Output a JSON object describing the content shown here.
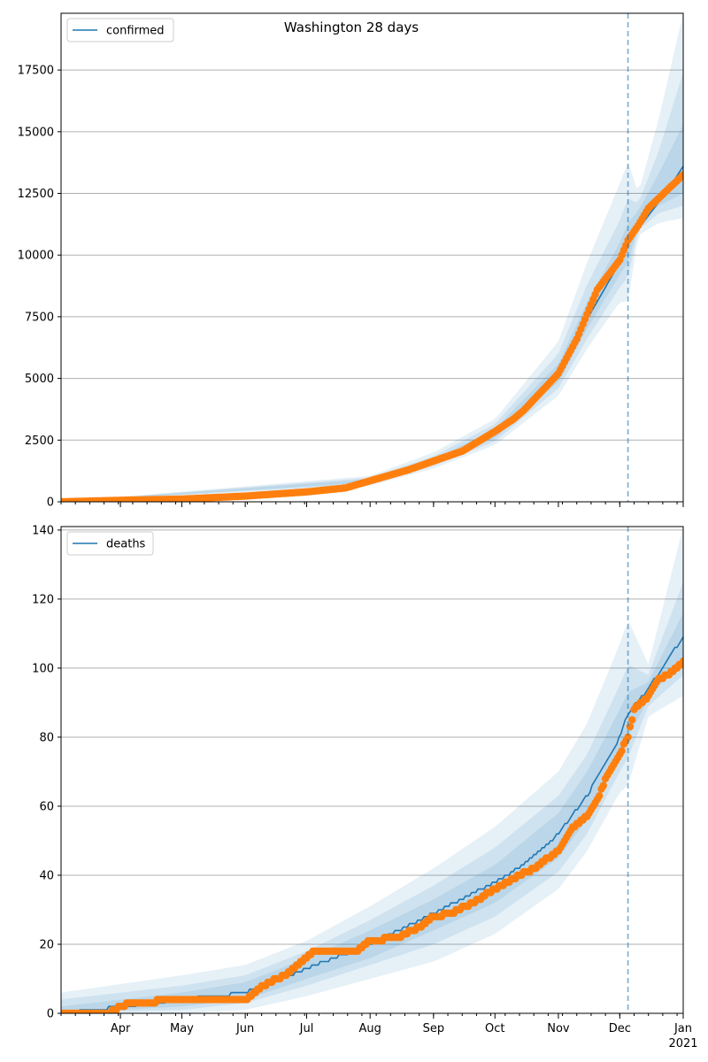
{
  "figure": {
    "title": "Washington 28 days"
  },
  "colors": {
    "model": "#1f77b4",
    "observed": "#ff7f0e",
    "band": "#1f77b4",
    "grid": "#b0b0b0"
  },
  "x_axis": {
    "month_labels": [
      "Apr",
      "May",
      "Jun",
      "Jul",
      "Aug",
      "Sep",
      "Oct",
      "Nov",
      "Dec",
      "Jan"
    ],
    "year_label": "2021"
  },
  "chart_data": [
    {
      "type": "line",
      "series_label": "confirmed",
      "x_start": "2020-03-03",
      "x_end": "2021-01-01",
      "forecast_start": "2020-12-05",
      "ylim": [
        0,
        19800
      ],
      "yticks": [
        0,
        2500,
        5000,
        7500,
        10000,
        12500,
        15000,
        17500
      ],
      "grid": true,
      "legend": "top-left",
      "model_line_points": [
        [
          "2020-03-03",
          0
        ],
        [
          "2020-04-01",
          60
        ],
        [
          "2020-05-01",
          120
        ],
        [
          "2020-06-01",
          250
        ],
        [
          "2020-07-01",
          420
        ],
        [
          "2020-07-20",
          600
        ],
        [
          "2020-08-01",
          850
        ],
        [
          "2020-08-20",
          1250
        ],
        [
          "2020-09-01",
          1600
        ],
        [
          "2020-09-15",
          2000
        ],
        [
          "2020-10-01",
          2750
        ],
        [
          "2020-10-15",
          3700
        ],
        [
          "2020-11-01",
          5200
        ],
        [
          "2020-11-15",
          7400
        ],
        [
          "2020-12-01",
          9700
        ],
        [
          "2020-12-05",
          10500
        ],
        [
          "2020-12-15",
          11600
        ],
        [
          "2020-12-25",
          12700
        ],
        [
          "2021-01-01",
          13600
        ]
      ],
      "observed_points": [
        [
          "2020-03-03",
          0
        ],
        [
          "2020-04-01",
          60
        ],
        [
          "2020-05-01",
          110
        ],
        [
          "2020-06-01",
          230
        ],
        [
          "2020-07-01",
          400
        ],
        [
          "2020-07-20",
          560
        ],
        [
          "2020-08-01",
          850
        ],
        [
          "2020-08-20",
          1300
        ],
        [
          "2020-09-01",
          1650
        ],
        [
          "2020-09-15",
          2050
        ],
        [
          "2020-10-01",
          2850
        ],
        [
          "2020-10-10",
          3350
        ],
        [
          "2020-10-15",
          3700
        ],
        [
          "2020-11-01",
          5200
        ],
        [
          "2020-11-10",
          6600
        ],
        [
          "2020-11-15",
          7600
        ],
        [
          "2020-11-20",
          8600
        ],
        [
          "2020-12-01",
          9800
        ],
        [
          "2020-12-05",
          10600
        ],
        [
          "2020-12-10",
          11200
        ],
        [
          "2020-12-15",
          11900
        ],
        [
          "2020-12-20",
          12300
        ],
        [
          "2020-12-25",
          12700
        ],
        [
          "2021-01-01",
          13250
        ]
      ],
      "bands": [
        {
          "lo": [
            [
              "2020-03-03",
              0
            ],
            [
              "2020-08-01",
              650
            ],
            [
              "2020-09-01",
              1350
            ],
            [
              "2020-10-01",
              2300
            ],
            [
              "2020-11-01",
              4300
            ],
            [
              "2020-11-15",
              6200
            ],
            [
              "2020-12-01",
              8100
            ],
            [
              "2020-12-05",
              8100
            ],
            [
              "2020-12-10",
              10800
            ],
            [
              "2020-12-20",
              11300
            ],
            [
              "2021-01-01",
              11500
            ]
          ],
          "hi": [
            [
              "2020-03-03",
              0
            ],
            [
              "2020-08-01",
              1050
            ],
            [
              "2020-09-01",
              2000
            ],
            [
              "2020-10-01",
              3350
            ],
            [
              "2020-11-01",
              6500
            ],
            [
              "2020-11-15",
              9700
            ],
            [
              "2020-12-01",
              12900
            ],
            [
              "2020-12-05",
              13800
            ],
            [
              "2020-12-10",
              12500
            ],
            [
              "2020-12-20",
              15500
            ],
            [
              "2021-01-01",
              19800
            ]
          ]
        },
        {
          "lo": [
            [
              "2020-03-03",
              0
            ],
            [
              "2020-08-01",
              720
            ],
            [
              "2020-09-01",
              1450
            ],
            [
              "2020-10-01",
              2450
            ],
            [
              "2020-11-01",
              4600
            ],
            [
              "2020-11-15",
              6600
            ],
            [
              "2020-12-01",
              8700
            ],
            [
              "2020-12-05",
              9100
            ],
            [
              "2020-12-10",
              11000
            ],
            [
              "2020-12-20",
              11700
            ],
            [
              "2021-01-01",
              12000
            ]
          ],
          "hi": [
            [
              "2020-03-03",
              0
            ],
            [
              "2020-08-01",
              980
            ],
            [
              "2020-09-01",
              1850
            ],
            [
              "2020-10-01",
              3150
            ],
            [
              "2020-11-01",
              6000
            ],
            [
              "2020-11-15",
              8800
            ],
            [
              "2020-12-01",
              11400
            ],
            [
              "2020-12-05",
              12300
            ],
            [
              "2020-12-10",
              12100
            ],
            [
              "2020-12-20",
              14200
            ],
            [
              "2021-01-01",
              17400
            ]
          ]
        },
        {
          "lo": [
            [
              "2020-03-03",
              0
            ],
            [
              "2020-08-01",
              780
            ],
            [
              "2020-09-01",
              1520
            ],
            [
              "2020-10-01",
              2580
            ],
            [
              "2020-11-01",
              4850
            ],
            [
              "2020-11-15",
              7000
            ],
            [
              "2020-12-01",
              9200
            ],
            [
              "2020-12-05",
              9700
            ],
            [
              "2020-12-10",
              11200
            ],
            [
              "2020-12-20",
              12000
            ],
            [
              "2021-01-01",
              12500
            ]
          ],
          "hi": [
            [
              "2020-03-03",
              0
            ],
            [
              "2020-08-01",
              920
            ],
            [
              "2020-09-01",
              1720
            ],
            [
              "2020-10-01",
              2950
            ],
            [
              "2020-11-01",
              5600
            ],
            [
              "2020-11-15",
              8100
            ],
            [
              "2020-12-01",
              10500
            ],
            [
              "2020-12-05",
              11300
            ],
            [
              "2020-12-10",
              11800
            ],
            [
              "2020-12-20",
              13300
            ],
            [
              "2021-01-01",
              15300
            ]
          ]
        }
      ]
    },
    {
      "type": "line",
      "series_label": "deaths",
      "x_start": "2020-03-03",
      "x_end": "2021-01-01",
      "forecast_start": "2020-12-05",
      "ylim": [
        0,
        141
      ],
      "yticks": [
        0,
        20,
        40,
        60,
        80,
        100,
        120,
        140
      ],
      "grid": true,
      "legend": "top-left",
      "model_line_points": [
        [
          "2020-03-03",
          0
        ],
        [
          "2020-03-20",
          1
        ],
        [
          "2020-04-01",
          2
        ],
        [
          "2020-05-01",
          4
        ],
        [
          "2020-06-01",
          6
        ],
        [
          "2020-07-01",
          13
        ],
        [
          "2020-08-01",
          20
        ],
        [
          "2020-09-01",
          29
        ],
        [
          "2020-10-01",
          38
        ],
        [
          "2020-10-15",
          43
        ],
        [
          "2020-11-01",
          52
        ],
        [
          "2020-11-15",
          63
        ],
        [
          "2020-12-01",
          80
        ],
        [
          "2020-12-05",
          87
        ],
        [
          "2020-12-15",
          94
        ],
        [
          "2020-12-25",
          103
        ],
        [
          "2021-01-01",
          109
        ]
      ],
      "observed_points": [
        [
          "2020-03-03",
          0
        ],
        [
          "2020-03-26",
          0
        ],
        [
          "2020-04-01",
          2
        ],
        [
          "2020-04-06",
          3
        ],
        [
          "2020-05-01",
          4
        ],
        [
          "2020-06-01",
          4
        ],
        [
          "2020-06-10",
          8
        ],
        [
          "2020-06-20",
          11
        ],
        [
          "2020-07-01",
          16
        ],
        [
          "2020-07-05",
          18
        ],
        [
          "2020-07-25",
          18
        ],
        [
          "2020-08-01",
          21
        ],
        [
          "2020-08-15",
          22
        ],
        [
          "2020-08-25",
          25
        ],
        [
          "2020-09-01",
          28
        ],
        [
          "2020-09-10",
          29
        ],
        [
          "2020-09-20",
          32
        ],
        [
          "2020-10-01",
          36
        ],
        [
          "2020-10-10",
          39
        ],
        [
          "2020-10-20",
          42
        ],
        [
          "2020-11-01",
          47
        ],
        [
          "2020-11-08",
          54
        ],
        [
          "2020-11-15",
          57
        ],
        [
          "2020-11-20",
          62
        ],
        [
          "2020-11-25",
          69
        ],
        [
          "2020-12-01",
          75
        ],
        [
          "2020-12-05",
          80
        ],
        [
          "2020-12-08",
          88
        ],
        [
          "2020-12-15",
          92
        ],
        [
          "2020-12-20",
          97
        ],
        [
          "2020-12-25",
          98
        ],
        [
          "2021-01-01",
          102
        ]
      ],
      "bands": [
        {
          "lo": [
            [
              "2020-03-03",
              0
            ],
            [
              "2020-05-01",
              0
            ],
            [
              "2020-06-01",
              1
            ],
            [
              "2020-07-01",
              5
            ],
            [
              "2020-08-01",
              10
            ],
            [
              "2020-09-01",
              15
            ],
            [
              "2020-10-01",
              23
            ],
            [
              "2020-11-01",
              36
            ],
            [
              "2020-11-15",
              47
            ],
            [
              "2020-12-01",
              64
            ],
            [
              "2020-12-05",
              66
            ],
            [
              "2020-12-15",
              86
            ],
            [
              "2021-01-01",
              92
            ]
          ],
          "hi": [
            [
              "2020-03-03",
              6
            ],
            [
              "2020-05-01",
              11
            ],
            [
              "2020-06-01",
              14
            ],
            [
              "2020-07-01",
              21
            ],
            [
              "2020-08-01",
              31
            ],
            [
              "2020-09-01",
              42
            ],
            [
              "2020-10-01",
              54
            ],
            [
              "2020-11-01",
              70
            ],
            [
              "2020-11-15",
              84
            ],
            [
              "2020-12-01",
              107
            ],
            [
              "2020-12-05",
              114
            ],
            [
              "2020-12-15",
              101
            ],
            [
              "2021-01-01",
              141
            ]
          ]
        },
        {
          "lo": [
            [
              "2020-03-03",
              0
            ],
            [
              "2020-05-01",
              1
            ],
            [
              "2020-06-01",
              3
            ],
            [
              "2020-07-01",
              8
            ],
            [
              "2020-08-01",
              14
            ],
            [
              "2020-09-01",
              20
            ],
            [
              "2020-10-01",
              28
            ],
            [
              "2020-11-01",
              41
            ],
            [
              "2020-11-15",
              52
            ],
            [
              "2020-12-01",
              70
            ],
            [
              "2020-12-05",
              74
            ],
            [
              "2020-12-15",
              89
            ],
            [
              "2021-01-01",
              98
            ]
          ],
          "hi": [
            [
              "2020-03-03",
              4
            ],
            [
              "2020-05-01",
              8
            ],
            [
              "2020-06-01",
              11
            ],
            [
              "2020-07-01",
              18
            ],
            [
              "2020-08-01",
              27
            ],
            [
              "2020-09-01",
              37
            ],
            [
              "2020-10-01",
              48
            ],
            [
              "2020-11-01",
              63
            ],
            [
              "2020-11-15",
              75
            ],
            [
              "2020-12-01",
              95
            ],
            [
              "2020-12-05",
              101
            ],
            [
              "2020-12-15",
              98
            ],
            [
              "2021-01-01",
              125
            ]
          ]
        },
        {
          "lo": [
            [
              "2020-03-03",
              0
            ],
            [
              "2020-05-01",
              2
            ],
            [
              "2020-06-01",
              4
            ],
            [
              "2020-07-01",
              10
            ],
            [
              "2020-08-01",
              16
            ],
            [
              "2020-09-01",
              24
            ],
            [
              "2020-10-01",
              32
            ],
            [
              "2020-11-01",
              45
            ],
            [
              "2020-11-15",
              56
            ],
            [
              "2020-12-01",
              74
            ],
            [
              "2020-12-05",
              80
            ],
            [
              "2020-12-15",
              91
            ],
            [
              "2021-01-01",
              103
            ]
          ],
          "hi": [
            [
              "2020-03-03",
              2
            ],
            [
              "2020-05-01",
              6
            ],
            [
              "2020-06-01",
              9
            ],
            [
              "2020-07-01",
              16
            ],
            [
              "2020-08-01",
              24
            ],
            [
              "2020-09-01",
              33
            ],
            [
              "2020-10-01",
              43
            ],
            [
              "2020-11-01",
              58
            ],
            [
              "2020-11-15",
              70
            ],
            [
              "2020-12-01",
              88
            ],
            [
              "2020-12-05",
              93
            ],
            [
              "2020-12-15",
              96
            ],
            [
              "2021-01-01",
              116
            ]
          ]
        }
      ]
    }
  ]
}
